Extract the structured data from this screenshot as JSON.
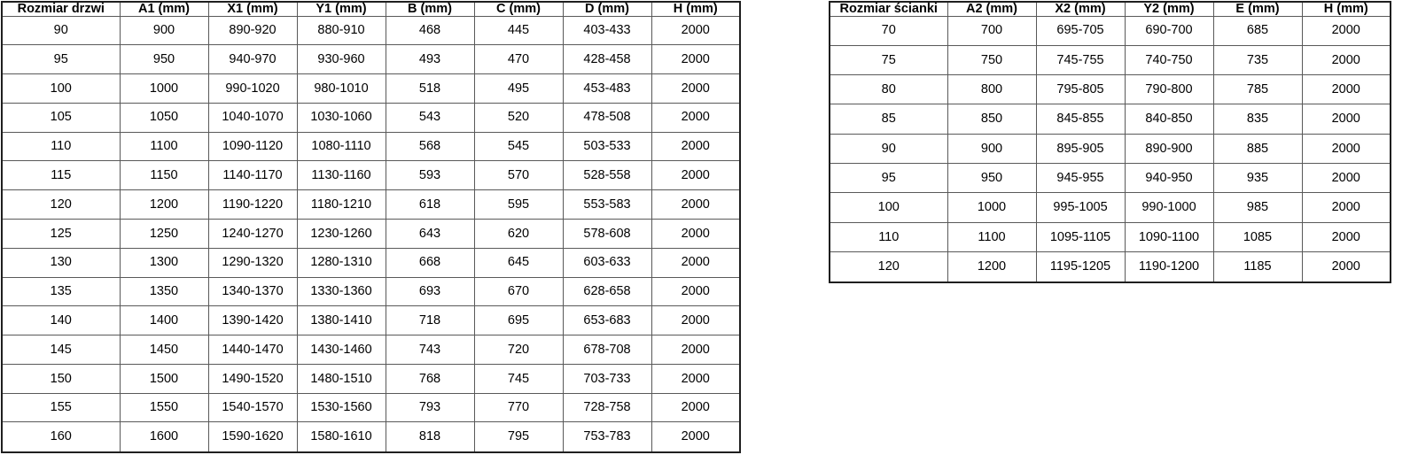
{
  "door_table": {
    "headers": [
      "Rozmiar drzwi",
      "A1 (mm)",
      "X1 (mm)",
      "Y1 (mm)",
      "B (mm)",
      "C (mm)",
      "D (mm)",
      "H (mm)"
    ],
    "rows": [
      [
        "90",
        "900",
        "890-920",
        "880-910",
        "468",
        "445",
        "403-433",
        "2000"
      ],
      [
        "95",
        "950",
        "940-970",
        "930-960",
        "493",
        "470",
        "428-458",
        "2000"
      ],
      [
        "100",
        "1000",
        "990-1020",
        "980-1010",
        "518",
        "495",
        "453-483",
        "2000"
      ],
      [
        "105",
        "1050",
        "1040-1070",
        "1030-1060",
        "543",
        "520",
        "478-508",
        "2000"
      ],
      [
        "110",
        "1100",
        "1090-1120",
        "1080-1110",
        "568",
        "545",
        "503-533",
        "2000"
      ],
      [
        "115",
        "1150",
        "1140-1170",
        "1130-1160",
        "593",
        "570",
        "528-558",
        "2000"
      ],
      [
        "120",
        "1200",
        "1190-1220",
        "1180-1210",
        "618",
        "595",
        "553-583",
        "2000"
      ],
      [
        "125",
        "1250",
        "1240-1270",
        "1230-1260",
        "643",
        "620",
        "578-608",
        "2000"
      ],
      [
        "130",
        "1300",
        "1290-1320",
        "1280-1310",
        "668",
        "645",
        "603-633",
        "2000"
      ],
      [
        "135",
        "1350",
        "1340-1370",
        "1330-1360",
        "693",
        "670",
        "628-658",
        "2000"
      ],
      [
        "140",
        "1400",
        "1390-1420",
        "1380-1410",
        "718",
        "695",
        "653-683",
        "2000"
      ],
      [
        "145",
        "1450",
        "1440-1470",
        "1430-1460",
        "743",
        "720",
        "678-708",
        "2000"
      ],
      [
        "150",
        "1500",
        "1490-1520",
        "1480-1510",
        "768",
        "745",
        "703-733",
        "2000"
      ],
      [
        "155",
        "1550",
        "1540-1570",
        "1530-1560",
        "793",
        "770",
        "728-758",
        "2000"
      ],
      [
        "160",
        "1600",
        "1590-1620",
        "1580-1610",
        "818",
        "795",
        "753-783",
        "2000"
      ]
    ]
  },
  "wall_table": {
    "headers": [
      "Rozmiar ścianki",
      "A2 (mm)",
      "X2 (mm)",
      "Y2 (mm)",
      "E (mm)",
      "H (mm)"
    ],
    "rows": [
      [
        "70",
        "700",
        "695-705",
        "690-700",
        "685",
        "2000"
      ],
      [
        "75",
        "750",
        "745-755",
        "740-750",
        "735",
        "2000"
      ],
      [
        "80",
        "800",
        "795-805",
        "790-800",
        "785",
        "2000"
      ],
      [
        "85",
        "850",
        "845-855",
        "840-850",
        "835",
        "2000"
      ],
      [
        "90",
        "900",
        "895-905",
        "890-900",
        "885",
        "2000"
      ],
      [
        "95",
        "950",
        "945-955",
        "940-950",
        "935",
        "2000"
      ],
      [
        "100",
        "1000",
        "995-1005",
        "990-1000",
        "985",
        "2000"
      ],
      [
        "110",
        "1100",
        "1095-1105",
        "1090-1100",
        "1085",
        "2000"
      ],
      [
        "120",
        "1200",
        "1195-1205",
        "1190-1200",
        "1185",
        "2000"
      ]
    ]
  },
  "colors": {
    "background": "#ffffff",
    "text": "#000000",
    "outer_border": "#1f1f1f",
    "inner_border": "#595959"
  }
}
